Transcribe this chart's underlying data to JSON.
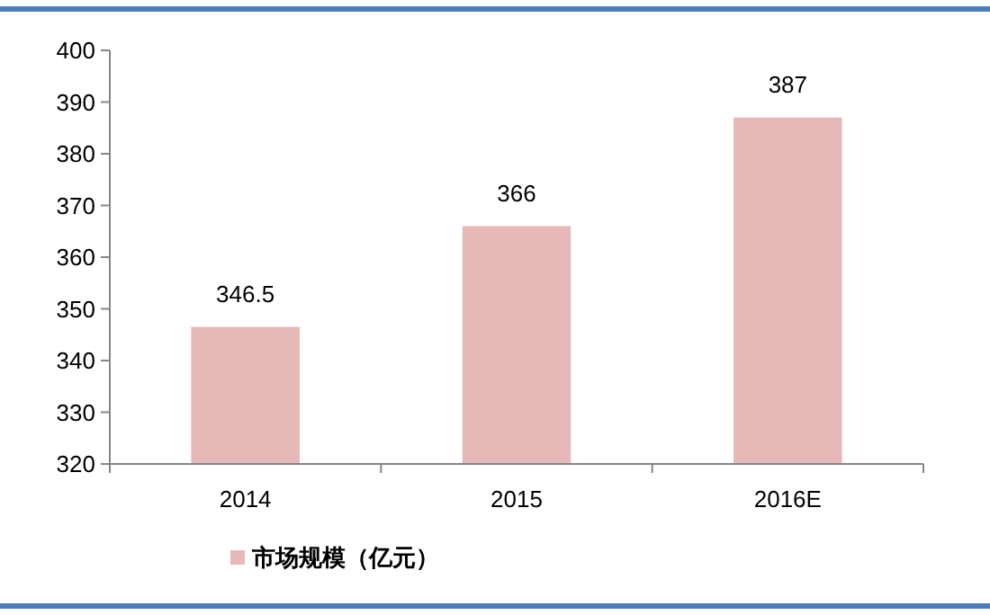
{
  "chart_data": {
    "type": "bar",
    "categories": [
      "2014",
      "2015",
      "2016E"
    ],
    "series": [
      {
        "name": "市场规模（亿元）",
        "color": "#e6b8b7",
        "values": [
          346.5,
          366,
          387
        ]
      }
    ],
    "ylim": [
      320,
      400
    ],
    "yticks": [
      320,
      330,
      340,
      350,
      360,
      370,
      380,
      390,
      400
    ],
    "data_labels": true,
    "legend": "bottom left",
    "grid": false
  }
}
